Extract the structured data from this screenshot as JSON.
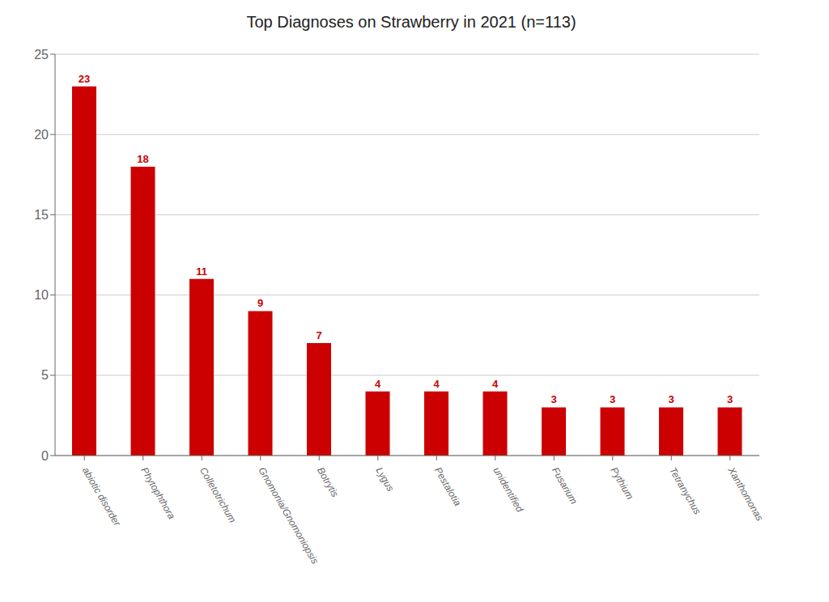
{
  "chart_data": {
    "type": "bar",
    "title": "Top Diagnoses on Strawberry in 2021 (n=113)",
    "categories": [
      "abiotic disorder",
      "Phytophthora",
      "Colletotrichum",
      "Gnomonia/Gnomoniopsis",
      "Botrytis",
      "Lygus",
      "Pestalotia",
      "unidentified",
      "Fusarium",
      "Pythium",
      "Tetranychus",
      "Xanthomonas"
    ],
    "values": [
      23,
      18,
      11,
      9,
      7,
      4,
      4,
      4,
      3,
      3,
      3,
      3
    ],
    "color": "#cc0000",
    "ylim": [
      0,
      25
    ],
    "yticks": [
      0,
      5,
      10,
      15,
      20,
      25
    ],
    "grid": true,
    "data_labels": true
  }
}
